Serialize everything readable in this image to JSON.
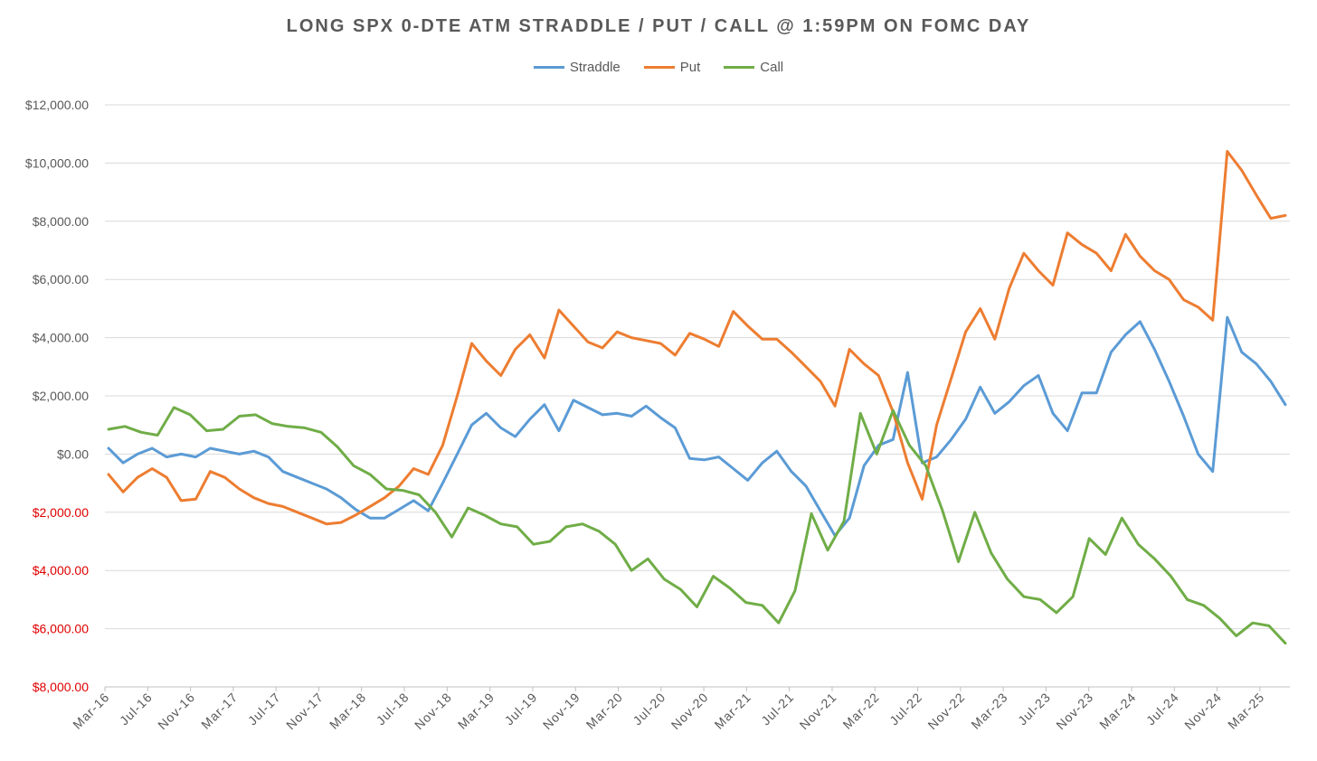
{
  "chart_data": {
    "type": "line",
    "title": "LONG SPX 0-DTE ATM STRADDLE / PUT / CALL @ 1:59PM ON FOMC DAY",
    "xlabel": "",
    "ylabel": "",
    "ylim": [
      -8000,
      12000
    ],
    "y_ticks": [
      12000,
      10000,
      8000,
      6000,
      4000,
      2000,
      0,
      -2000,
      -4000,
      -6000,
      -8000
    ],
    "y_tick_labels": [
      "$12,000.00",
      "$10,000.00",
      "$8,000.00",
      "$6,000.00",
      "$4,000.00",
      "$2,000.00",
      "$0.00",
      "$2,000.00",
      "$4,000.00",
      "$6,000.00",
      "$8,000.00"
    ],
    "negative_label_color": "#e00000",
    "positive_label_color": "#595959",
    "x_tick_labels": [
      "Mar-16",
      "Jul-16",
      "Nov-16",
      "Mar-17",
      "Jul-17",
      "Nov-17",
      "Mar-18",
      "Jul-18",
      "Nov-18",
      "Mar-19",
      "Jul-19",
      "Nov-19",
      "Mar-20",
      "Jul-20",
      "Nov-20",
      "Mar-21",
      "Jul-21",
      "Nov-21",
      "Mar-22",
      "Jul-22",
      "Nov-22",
      "Mar-23",
      "Jul-23",
      "Nov-23",
      "Mar-24",
      "Jul-24",
      "Nov-24",
      "Mar-25"
    ],
    "legend_position": "top-center",
    "grid": true,
    "series": [
      {
        "name": "Straddle",
        "color": "#5b9bd5",
        "values": [
          200,
          -300,
          0,
          200,
          -100,
          0,
          -100,
          200,
          100,
          0,
          100,
          -100,
          -600,
          -800,
          -1000,
          -1200,
          -1500,
          -1900,
          -2200,
          -2200,
          -1900,
          -1600,
          -1950,
          -1000,
          0,
          1000,
          1400,
          900,
          600,
          1200,
          1700,
          800,
          1850,
          1600,
          1350,
          1400,
          1300,
          1650,
          1250,
          900,
          -150,
          -200,
          -100,
          -500,
          -900,
          -300,
          100,
          -600,
          -1100,
          -1950,
          -2800,
          -2200,
          -400,
          300,
          500,
          2800,
          -300,
          -100,
          500,
          1200,
          2300,
          1400,
          1800,
          2350,
          2700,
          1400,
          800,
          2100,
          2100,
          3500,
          4100,
          4550,
          3600,
          2500,
          1300,
          0,
          -600,
          4700,
          3500,
          3100,
          2500,
          1700
        ]
      },
      {
        "name": "Put",
        "color": "#ed7d31",
        "values": [
          -700,
          -1300,
          -800,
          -500,
          -800,
          -1600,
          -1550,
          -600,
          -800,
          -1200,
          -1500,
          -1700,
          -1800,
          -2000,
          -2200,
          -2400,
          -2350,
          -2100,
          -1800,
          -1500,
          -1100,
          -500,
          -700,
          300,
          2000,
          3800,
          3200,
          2700,
          3600,
          4100,
          3300,
          4950,
          4400,
          3850,
          3650,
          4200,
          4000,
          3900,
          3800,
          3400,
          4150,
          3950,
          3700,
          4900,
          4400,
          3950,
          3950,
          3500,
          3000,
          2500,
          1650,
          3600,
          3100,
          2700,
          1450,
          -300,
          -1550,
          1000,
          2600,
          4200,
          5000,
          3950,
          5700,
          6900,
          6300,
          5800,
          7600,
          7200,
          6900,
          6300,
          7550,
          6800,
          6300,
          6000,
          5300,
          5050,
          4600,
          10400,
          9750,
          8900,
          8100,
          8200
        ]
      },
      {
        "name": "Call",
        "color": "#70ad47",
        "values": [
          850,
          950,
          750,
          650,
          1600,
          1350,
          800,
          850,
          1300,
          1350,
          1050,
          950,
          900,
          750,
          250,
          -400,
          -700,
          -1200,
          -1250,
          -1400,
          -2000,
          -2850,
          -1850,
          -2100,
          -2400,
          -2500,
          -3100,
          -3000,
          -2500,
          -2400,
          -2650,
          -3100,
          -4000,
          -3600,
          -4300,
          -4650,
          -5250,
          -4200,
          -4600,
          -5100,
          -5200,
          -5800,
          -4700,
          -2050,
          -3300,
          -2300,
          1400,
          0,
          1500,
          300,
          -400,
          -1900,
          -3700,
          -2000,
          -3400,
          -4300,
          -4900,
          -5000,
          -5450,
          -4900,
          -2900,
          -3450,
          -2200,
          -3100,
          -3600,
          -4200,
          -5000,
          -5200,
          -5650,
          -6250,
          -5800,
          -5900,
          -6500
        ]
      }
    ]
  }
}
